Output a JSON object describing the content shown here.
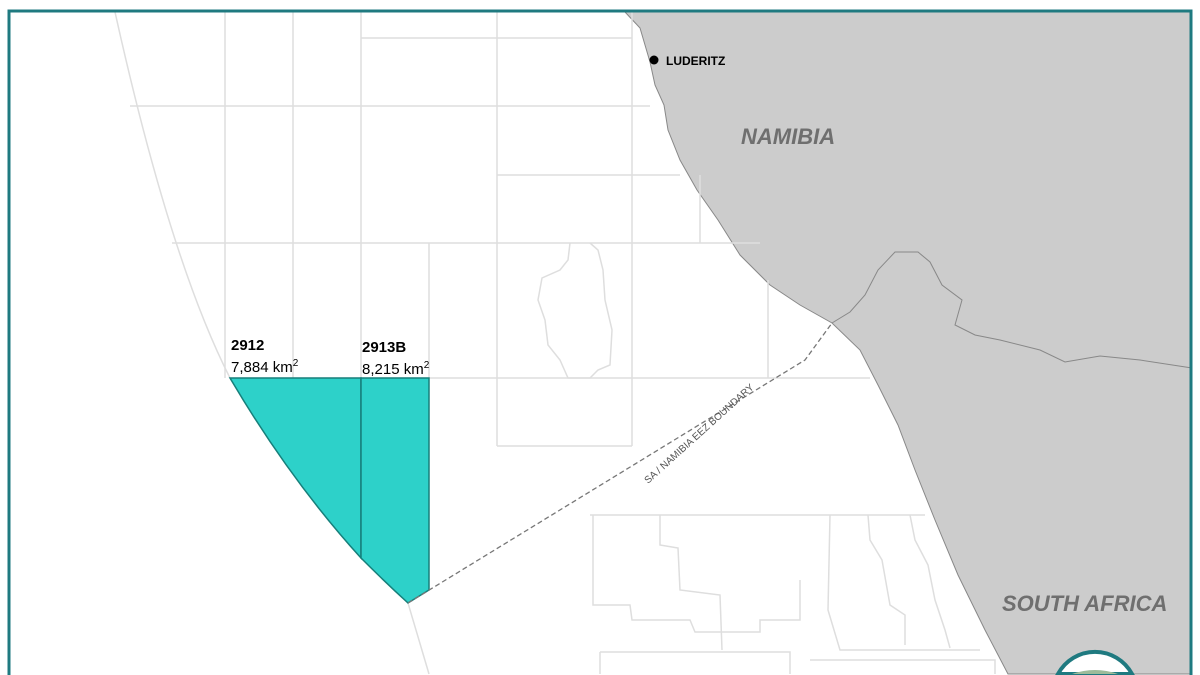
{
  "map": {
    "towns": [
      {
        "name": "LUDERITZ"
      }
    ],
    "countries": [
      {
        "name": "NAMIBIA"
      },
      {
        "name": "SOUTH AFRICA"
      }
    ],
    "boundary_label": "SA / NAMIBIA EEZ BOUNDARY",
    "blocks": [
      {
        "id": "2912",
        "area": "7,884 km",
        "unit_sup": "2"
      },
      {
        "id": "2913B",
        "area": "8,215 km",
        "unit_sup": "2"
      }
    ],
    "colors": {
      "block_fill": "#2dd1c9",
      "block_stroke": "#167f7a",
      "land": "#cccccc",
      "frame": "#1f7a80",
      "grid": "#dedede"
    }
  }
}
